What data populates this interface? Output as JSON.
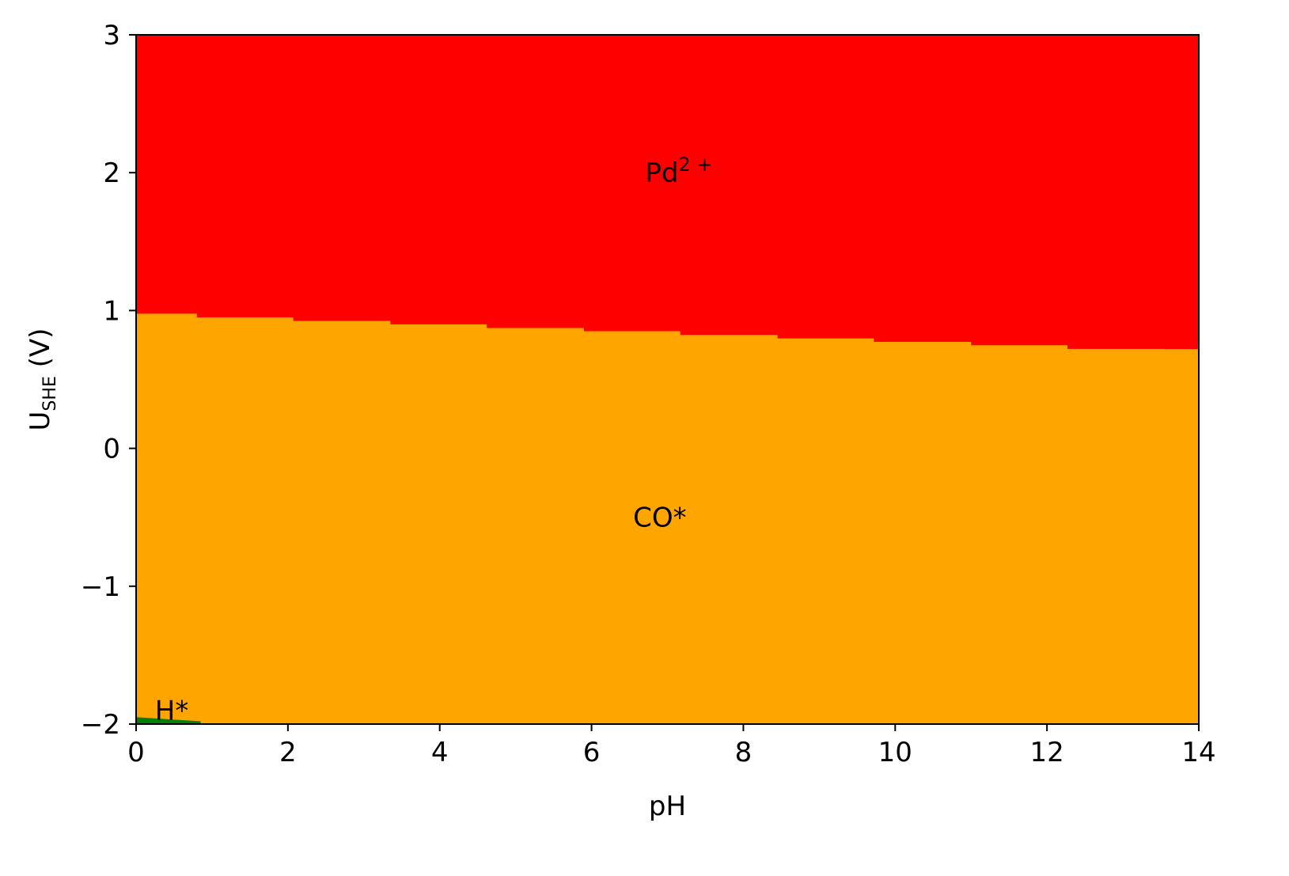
{
  "chart_data": {
    "type": "heatmap",
    "xlabel": "pH",
    "ylabel": {
      "main": "U",
      "sub": "SHE",
      "unit": " (V)"
    },
    "xlim": [
      0,
      14
    ],
    "ylim": [
      -2,
      3
    ],
    "xticks": [
      0,
      2,
      4,
      6,
      8,
      10,
      12,
      14
    ],
    "yticks": [
      -2,
      -1,
      0,
      1,
      2,
      3
    ],
    "ytick_labels": [
      "−2",
      "−1",
      "0",
      "1",
      "2",
      "3"
    ],
    "grid": false,
    "regions": [
      {
        "name": "Pd2+",
        "label_main": "Pd",
        "label_sup": "2 +",
        "color": "#ff0000",
        "label_at": [
          7.15,
          2.0
        ]
      },
      {
        "name": "CO*",
        "label_main": "CO*",
        "color": "#ffa500",
        "label_at": [
          6.9,
          -0.5
        ]
      },
      {
        "name": "H*",
        "label_main": "H*",
        "color": "#008000",
        "label_at": [
          0.47,
          -1.9
        ]
      }
    ],
    "boundary_Pd_CO": {
      "x": [
        0,
        0.8,
        2.07,
        3.35,
        4.62,
        5.9,
        7.17,
        8.45,
        9.72,
        11.0,
        12.27,
        13.55,
        14
      ],
      "y": [
        1.0,
        0.977,
        0.95,
        0.925,
        0.9,
        0.873,
        0.85,
        0.823,
        0.798,
        0.773,
        0.748,
        0.722,
        0.72
      ]
    },
    "boundary_H_CO": {
      "x": [
        0,
        0.85
      ],
      "y": [
        -1.95,
        -1.98
      ]
    }
  }
}
